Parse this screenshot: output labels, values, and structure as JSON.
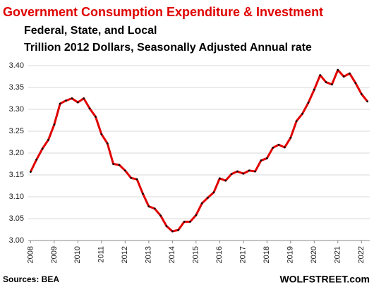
{
  "chart_data": {
    "type": "line",
    "title": "Government Consumption  Expenditure & Investment",
    "subtitle": "Federal, State, and Local",
    "subtitle2": "Trillion 2012 Dollars, Seasonally Adjusted Annual rate",
    "source": "Sources: BEA",
    "credit": "WOLFSTREET.com",
    "x": [
      2008,
      2008.25,
      2008.5,
      2008.75,
      2009,
      2009.25,
      2009.5,
      2009.75,
      2010,
      2010.25,
      2010.5,
      2010.75,
      2011,
      2011.25,
      2011.5,
      2011.75,
      2012,
      2012.25,
      2012.5,
      2012.75,
      2013,
      2013.25,
      2013.5,
      2013.75,
      2014,
      2014.25,
      2014.5,
      2014.75,
      2015,
      2015.25,
      2015.5,
      2015.75,
      2016,
      2016.25,
      2016.5,
      2016.75,
      2017,
      2017.25,
      2017.5,
      2017.75,
      2018,
      2018.25,
      2018.5,
      2018.75,
      2019,
      2019.25,
      2019.5,
      2019.75,
      2020,
      2020.25,
      2020.5,
      2020.75,
      2021,
      2021.25,
      2021.5,
      2021.75,
      2022,
      2022.25
    ],
    "series": [
      {
        "color": "#e00000",
        "marker_color": "#111111",
        "values": [
          3.157,
          3.185,
          3.21,
          3.23,
          3.265,
          3.313,
          3.32,
          3.325,
          3.316,
          3.325,
          3.302,
          3.283,
          3.243,
          3.222,
          3.175,
          3.173,
          3.16,
          3.143,
          3.14,
          3.107,
          3.078,
          3.073,
          3.057,
          3.033,
          3.021,
          3.024,
          3.043,
          3.043,
          3.058,
          3.085,
          3.098,
          3.11,
          3.142,
          3.137,
          3.152,
          3.158,
          3.153,
          3.16,
          3.158,
          3.183,
          3.188,
          3.212,
          3.219,
          3.213,
          3.235,
          3.273,
          3.29,
          3.315,
          3.345,
          3.378,
          3.362,
          3.357,
          3.39,
          3.375,
          3.382,
          3.36,
          3.335,
          3.318
        ]
      }
    ],
    "xlim": [
      2007.9,
      2022.35
    ],
    "xticks": [
      2008,
      2009,
      2010,
      2011,
      2012,
      2013,
      2014,
      2015,
      2016,
      2017,
      2018,
      2019,
      2020,
      2021,
      2022
    ],
    "ylim": [
      3.0,
      3.4
    ],
    "yticks": [
      {
        "value": 3.0,
        "label": "3.00"
      },
      3.05,
      {
        "value": 3.1,
        "label": "3.10"
      },
      3.15,
      {
        "value": 3.2,
        "label": "3.20"
      },
      3.25,
      {
        "value": 3.3,
        "label": "3.30"
      },
      3.35,
      {
        "value": 3.4,
        "label": "3.40"
      }
    ],
    "grid": true
  }
}
